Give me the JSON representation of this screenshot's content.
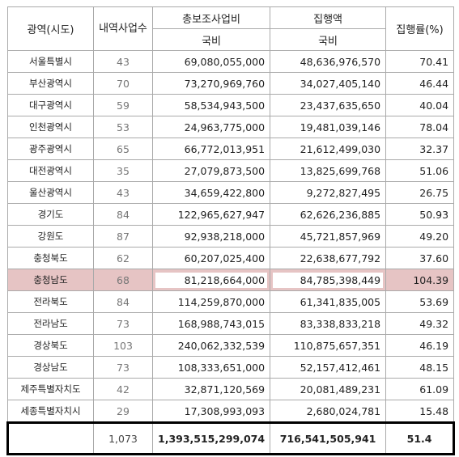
{
  "header": {
    "cols": [
      "광역(시도)",
      "내역사업수",
      "총보조사업비",
      "집행액",
      "집행률(%)"
    ],
    "sub": [
      "국비",
      "국비"
    ]
  },
  "table": {
    "highlight_row": 10,
    "rows": [
      [
        "서울특별시",
        "43",
        "69,080,055,000",
        "48,636,976,570",
        "70.41"
      ],
      [
        "부산광역시",
        "70",
        "73,270,969,760",
        "34,027,405,140",
        "46.44"
      ],
      [
        "대구광역시",
        "59",
        "58,534,943,500",
        "23,437,635,650",
        "40.04"
      ],
      [
        "인천광역시",
        "53",
        "24,963,775,000",
        "19,481,039,146",
        "78.04"
      ],
      [
        "광주광역시",
        "65",
        "66,772,013,951",
        "21,612,499,030",
        "32.37"
      ],
      [
        "대전광역시",
        "35",
        "27,079,873,500",
        "13,825,699,768",
        "51.06"
      ],
      [
        "울산광역시",
        "43",
        "34,659,422,800",
        "9,272,827,495",
        "26.75"
      ],
      [
        "경기도",
        "84",
        "122,965,627,947",
        "62,626,236,885",
        "50.93"
      ],
      [
        "강원도",
        "87",
        "92,938,218,000",
        "45,721,857,969",
        "49.20"
      ],
      [
        "충청북도",
        "62",
        "60,207,025,400",
        "22,638,677,792",
        "37.60"
      ],
      [
        "충청남도",
        "68",
        "81,218,664,000",
        "84,785,398,449",
        "104.39"
      ],
      [
        "전라북도",
        "84",
        "114,259,870,000",
        "61,341,835,005",
        "53.69"
      ],
      [
        "전라남도",
        "73",
        "168,988,743,015",
        "83,338,833,218",
        "49.32"
      ],
      [
        "경상북도",
        "103",
        "240,062,332,539",
        "110,875,657,351",
        "46.19"
      ],
      [
        "경상남도",
        "73",
        "108,333,651,000",
        "52,157,412,461",
        "48.15"
      ],
      [
        "제주특별자치도",
        "42",
        "32,871,120,569",
        "20,081,489,231",
        "61.09"
      ],
      [
        "세종특별자치시",
        "29",
        "17,308,993,093",
        "2,680,024,781",
        "15.48"
      ]
    ]
  },
  "total": [
    "1,073",
    "1,393,515,299,074",
    "716,541,505,941",
    "51.4"
  ]
}
